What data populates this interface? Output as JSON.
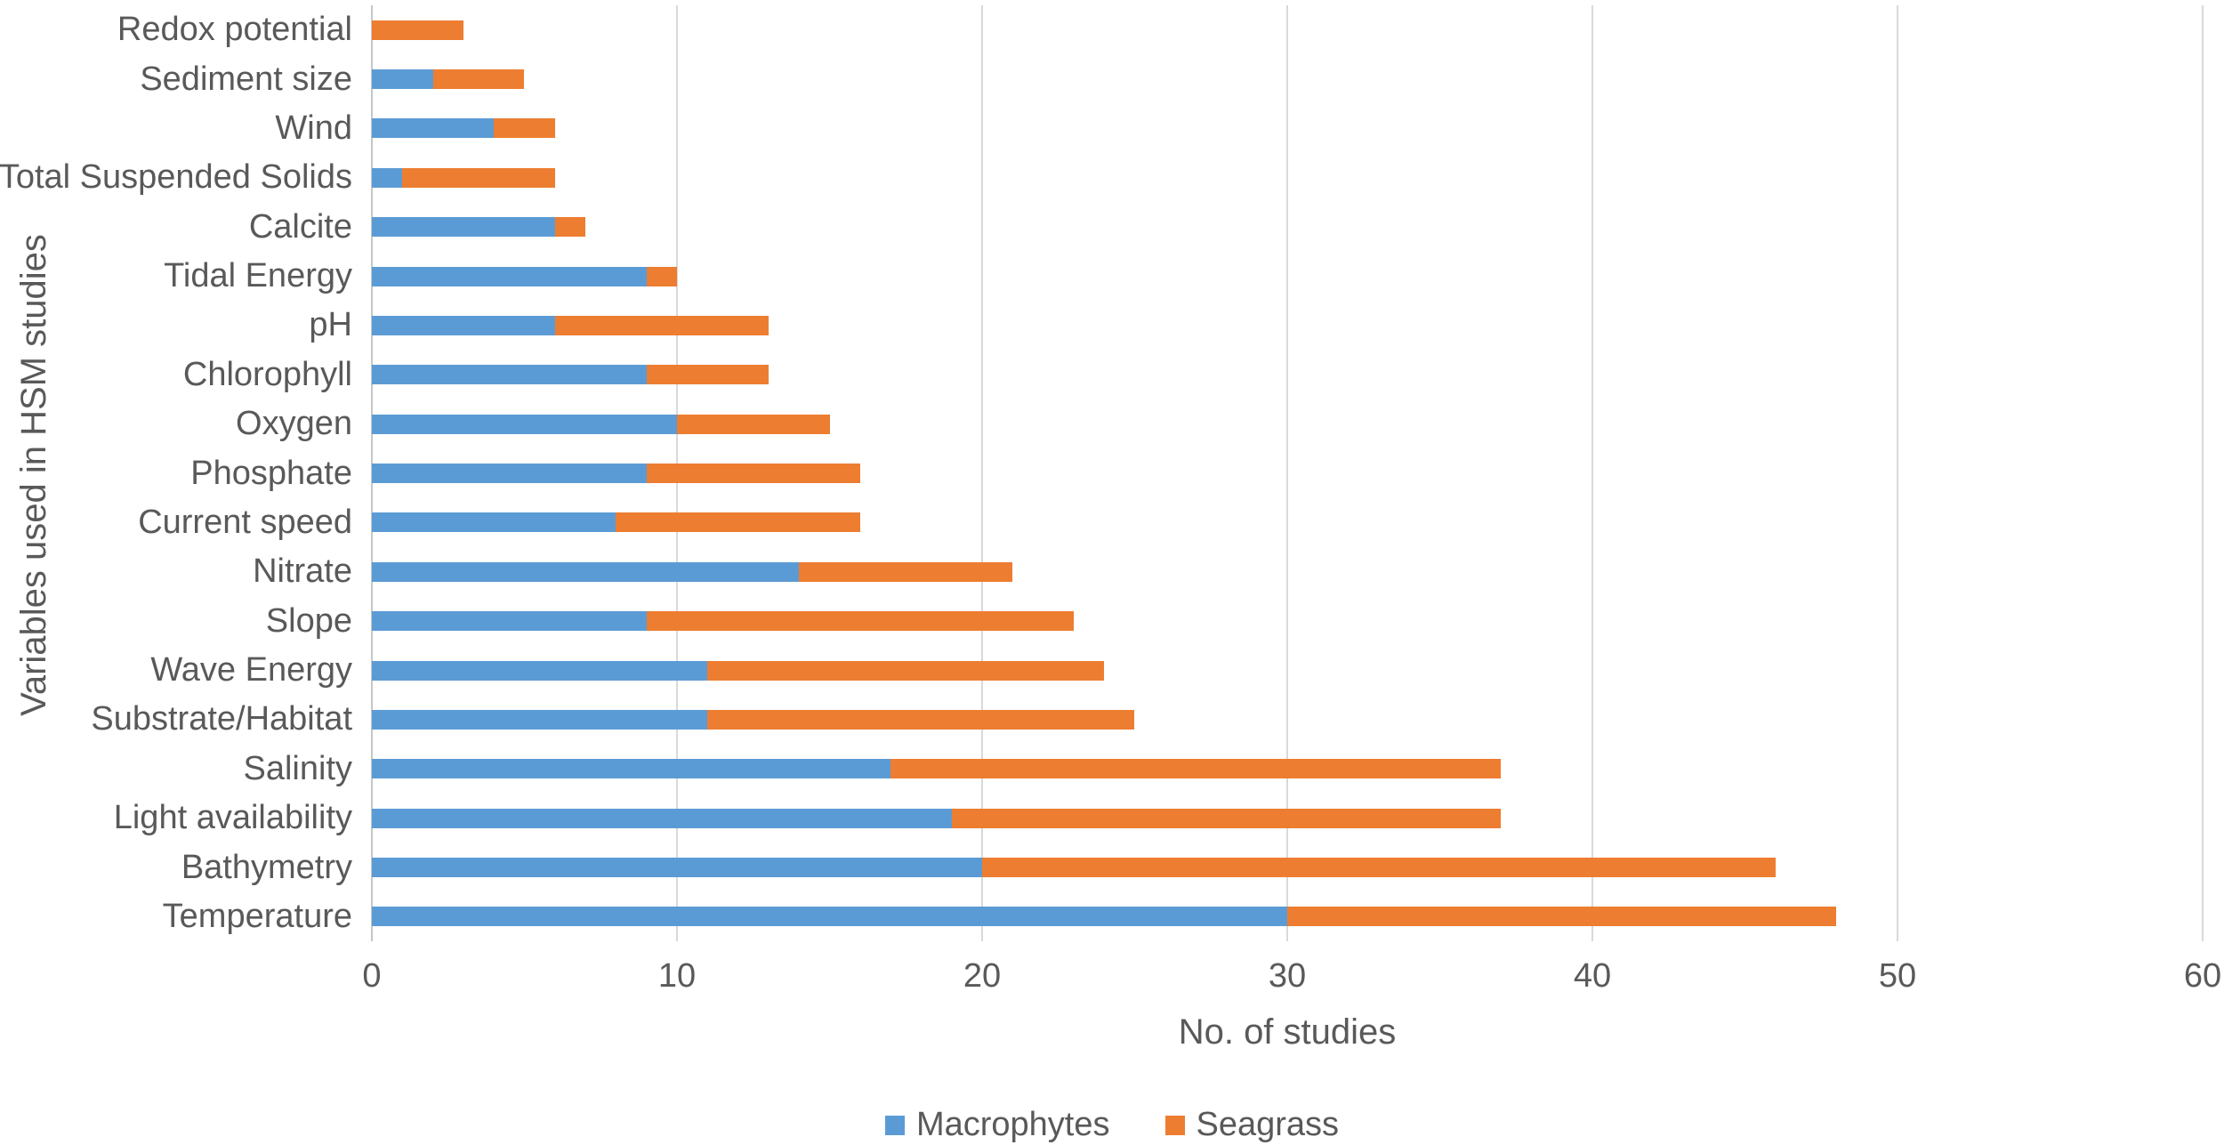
{
  "chart_data": {
    "type": "bar",
    "orientation": "horizontal",
    "stacked": true,
    "title": "",
    "xlabel": "No. of studies",
    "ylabel": "Variables used in HSM studies",
    "xlim": [
      0,
      60
    ],
    "xticks": [
      0,
      10,
      20,
      30,
      40,
      50,
      60
    ],
    "grid": "vertical",
    "legend_position": "bottom-center",
    "categories": [
      "Redox potential",
      "Sediment size",
      "Wind",
      "Total Suspended Solids",
      "Calcite",
      "Tidal Energy",
      "pH",
      "Chlorophyll",
      "Oxygen",
      "Phosphate",
      "Current speed",
      "Nitrate",
      "Slope",
      "Wave Energy",
      "Substrate/Habitat",
      "Salinity",
      "Light availability",
      "Bathymetry",
      "Temperature"
    ],
    "series": [
      {
        "name": "Macrophytes",
        "color": "#5B9BD5",
        "values": [
          0,
          2,
          4,
          1,
          6,
          9,
          6,
          9,
          10,
          9,
          8,
          14,
          9,
          11,
          11,
          17,
          19,
          20,
          30
        ]
      },
      {
        "name": "Seagrass",
        "color": "#ED7D31",
        "values": [
          3,
          3,
          2,
          5,
          1,
          1,
          7,
          4,
          5,
          7,
          8,
          7,
          14,
          13,
          14,
          20,
          18,
          26,
          18
        ]
      }
    ],
    "colors": {
      "text": "#595959",
      "gridline": "#D9D9D9",
      "axis_line": "#C6C6C6",
      "background": "#FFFFFF"
    }
  }
}
